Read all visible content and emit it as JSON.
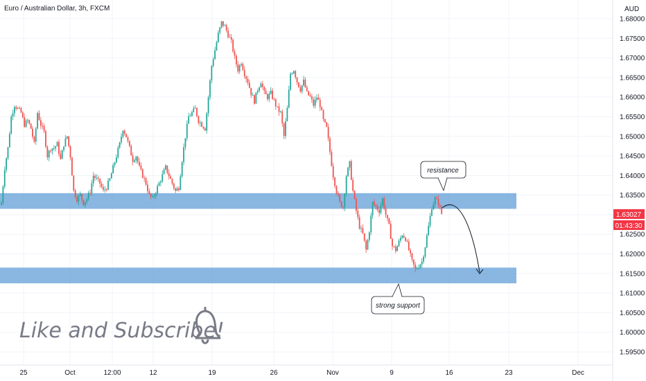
{
  "chart_data": {
    "type": "candlestick",
    "title": "Euro / Australian Dollar, 3h, FXCM",
    "currency_label": "AUD",
    "y_ticks": [
      "1.68000",
      "1.67500",
      "1.67000",
      "1.66500",
      "1.66000",
      "1.65500",
      "1.65000",
      "1.64500",
      "1.64000",
      "1.63500",
      "1.63000",
      "1.62500",
      "1.62000",
      "1.61500",
      "1.61000",
      "1.60500",
      "1.60000",
      "1.59500"
    ],
    "x_ticks": [
      "25",
      "Oct",
      "12:00",
      "12",
      "19",
      "26",
      "Nov",
      "9",
      "16",
      "23",
      "Dec"
    ],
    "ylim": [
      1.5925,
      1.6822
    ],
    "last_price": "1.63027",
    "countdown": "01:43:30",
    "last_price_color": "#f23645",
    "up_color": "#26a69a",
    "down_color": "#ef5350",
    "zone_color": "#5b9bd5",
    "resistance_zone": [
      1.6315,
      1.6355
    ],
    "support_zone": [
      1.6125,
      1.6165
    ],
    "annotations": [
      "resistance",
      "strong support"
    ],
    "projection": "curved arrow from resistance down to support",
    "path": [
      [
        0,
        1.633
      ],
      [
        2,
        1.642
      ],
      [
        4,
        1.647
      ],
      [
        6,
        1.655
      ],
      [
        8,
        1.658
      ],
      [
        10,
        1.657
      ],
      [
        12,
        1.656
      ],
      [
        14,
        1.653
      ],
      [
        16,
        1.654
      ],
      [
        18,
        1.652
      ],
      [
        20,
        1.648
      ],
      [
        22,
        1.656
      ],
      [
        24,
        1.653
      ],
      [
        26,
        1.651
      ],
      [
        28,
        1.645
      ],
      [
        30,
        1.647
      ],
      [
        32,
        1.647
      ],
      [
        34,
        1.648
      ],
      [
        36,
        1.644
      ],
      [
        38,
        1.648
      ],
      [
        40,
        1.65
      ],
      [
        42,
        1.645
      ],
      [
        44,
        1.636
      ],
      [
        46,
        1.634
      ],
      [
        48,
        1.635
      ],
      [
        50,
        1.633
      ],
      [
        52,
        1.634
      ],
      [
        54,
        1.636
      ],
      [
        56,
        1.64
      ],
      [
        58,
        1.639
      ],
      [
        60,
        1.638
      ],
      [
        62,
        1.636
      ],
      [
        64,
        1.637
      ],
      [
        66,
        1.639
      ],
      [
        68,
        1.642
      ],
      [
        70,
        1.645
      ],
      [
        72,
        1.648
      ],
      [
        74,
        1.652
      ],
      [
        76,
        1.65
      ],
      [
        78,
        1.647
      ],
      [
        80,
        1.644
      ],
      [
        82,
        1.645
      ],
      [
        84,
        1.642
      ],
      [
        86,
        1.64
      ],
      [
        88,
        1.638
      ],
      [
        90,
        1.635
      ],
      [
        92,
        1.634
      ],
      [
        94,
        1.636
      ],
      [
        96,
        1.638
      ],
      [
        98,
        1.64
      ],
      [
        100,
        1.642
      ],
      [
        102,
        1.64
      ],
      [
        104,
        1.638
      ],
      [
        106,
        1.636
      ],
      [
        108,
        1.637
      ],
      [
        110,
        1.644
      ],
      [
        112,
        1.65
      ],
      [
        114,
        1.655
      ],
      [
        116,
        1.656
      ],
      [
        118,
        1.657
      ],
      [
        120,
        1.654
      ],
      [
        122,
        1.653
      ],
      [
        124,
        1.652
      ],
      [
        126,
        1.66
      ],
      [
        128,
        1.668
      ],
      [
        130,
        1.672
      ],
      [
        132,
        1.676
      ],
      [
        134,
        1.679
      ],
      [
        136,
        1.678
      ],
      [
        138,
        1.676
      ],
      [
        140,
        1.674
      ],
      [
        142,
        1.67
      ],
      [
        144,
        1.667
      ],
      [
        146,
        1.669
      ],
      [
        148,
        1.666
      ],
      [
        150,
        1.664
      ],
      [
        152,
        1.661
      ],
      [
        154,
        1.659
      ],
      [
        156,
        1.662
      ],
      [
        158,
        1.664
      ],
      [
        160,
        1.661
      ],
      [
        162,
        1.66
      ],
      [
        164,
        1.661
      ],
      [
        166,
        1.659
      ],
      [
        168,
        1.657
      ],
      [
        170,
        1.656
      ],
      [
        172,
        1.65
      ],
      [
        174,
        1.657
      ],
      [
        176,
        1.666
      ],
      [
        178,
        1.667
      ],
      [
        180,
        1.664
      ],
      [
        182,
        1.662
      ],
      [
        184,
        1.664
      ],
      [
        186,
        1.661
      ],
      [
        188,
        1.66
      ],
      [
        190,
        1.658
      ],
      [
        192,
        1.66
      ],
      [
        194,
        1.658
      ],
      [
        196,
        1.654
      ],
      [
        198,
        1.652
      ],
      [
        200,
        1.646
      ],
      [
        202,
        1.64
      ],
      [
        204,
        1.636
      ],
      [
        206,
        1.633
      ],
      [
        208,
        1.632
      ],
      [
        210,
        1.64
      ],
      [
        212,
        1.643
      ],
      [
        214,
        1.636
      ],
      [
        216,
        1.631
      ],
      [
        218,
        1.627
      ],
      [
        220,
        1.625
      ],
      [
        222,
        1.621
      ],
      [
        224,
        1.626
      ],
      [
        226,
        1.633
      ],
      [
        228,
        1.632
      ],
      [
        230,
        1.631
      ],
      [
        232,
        1.634
      ],
      [
        234,
        1.63
      ],
      [
        236,
        1.627
      ],
      [
        238,
        1.622
      ],
      [
        240,
        1.621
      ],
      [
        242,
        1.623
      ],
      [
        244,
        1.625
      ],
      [
        246,
        1.624
      ],
      [
        248,
        1.621
      ],
      [
        250,
        1.618
      ],
      [
        252,
        1.616
      ],
      [
        254,
        1.617
      ],
      [
        256,
        1.618
      ],
      [
        258,
        1.622
      ],
      [
        260,
        1.627
      ],
      [
        262,
        1.632
      ],
      [
        264,
        1.634
      ],
      [
        266,
        1.633
      ],
      [
        268,
        1.6303
      ]
    ],
    "cta_text": "Like and Subscribe!"
  }
}
